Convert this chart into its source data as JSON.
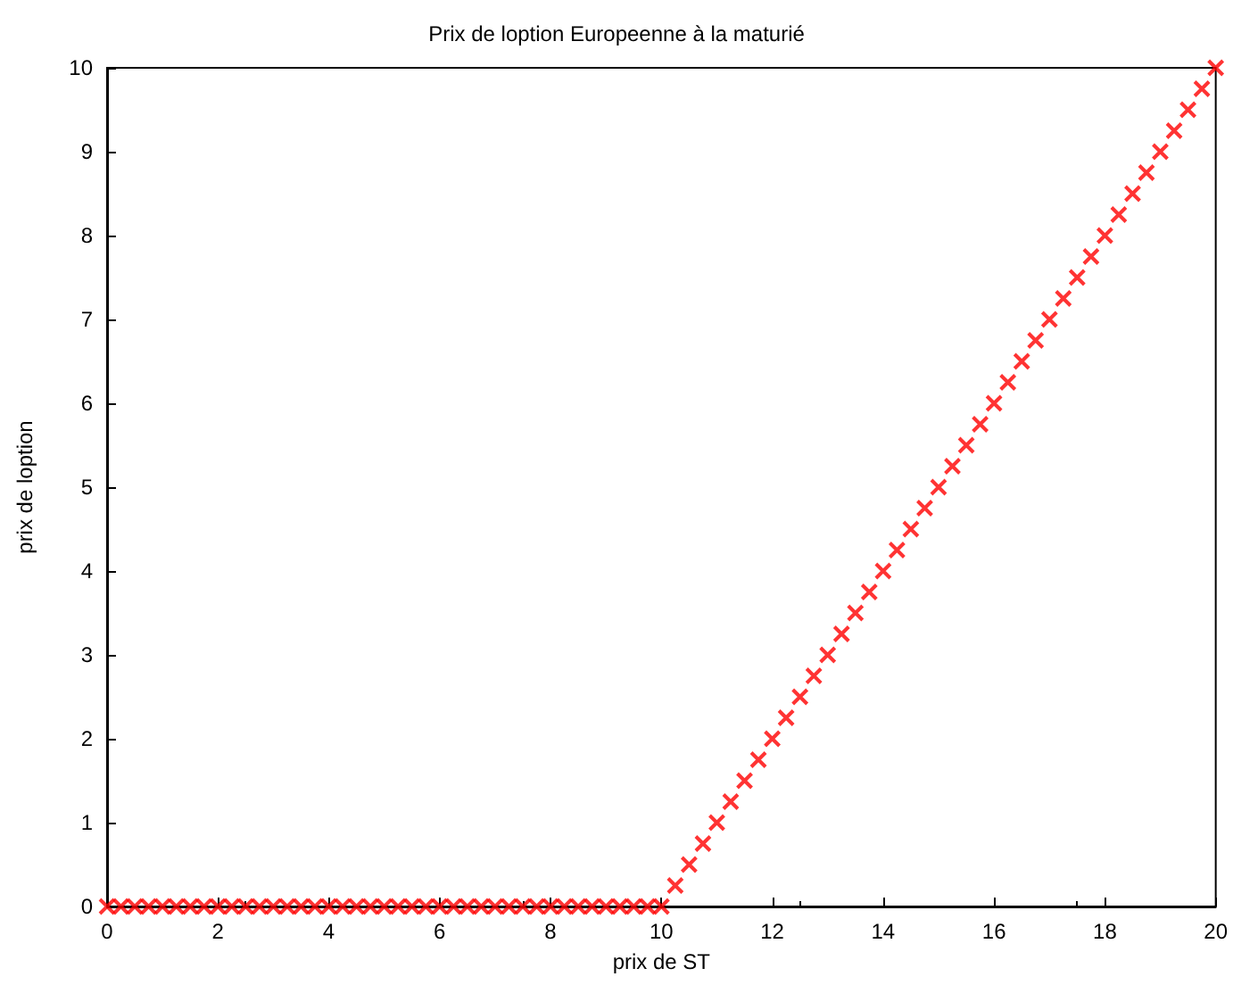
{
  "chart_data": {
    "type": "scatter",
    "title": "Prix de loption Europeenne à la maturié",
    "xlabel": "prix de ST",
    "ylabel": "prix de loption",
    "marker": "cross",
    "xlim": [
      0,
      20
    ],
    "xticks": [
      0,
      2,
      4,
      6,
      8,
      10,
      12,
      14,
      16,
      18,
      20
    ],
    "ylim": [
      0,
      10
    ],
    "yticks": [
      0,
      1,
      2,
      3,
      4,
      5,
      6,
      7,
      8,
      9,
      10
    ],
    "series": [
      {
        "color": "#ff0000",
        "x": [
          0,
          0.25,
          0.5,
          0.75,
          1,
          1.25,
          1.5,
          1.75,
          2,
          2.25,
          2.5,
          2.75,
          3,
          3.25,
          3.5,
          3.75,
          4,
          4.25,
          4.5,
          4.75,
          5,
          5.25,
          5.5,
          5.75,
          6,
          6.25,
          6.5,
          6.75,
          7,
          7.25,
          7.5,
          7.75,
          8,
          8.25,
          8.5,
          8.75,
          9,
          9.25,
          9.5,
          9.75,
          10,
          10.25,
          10.5,
          10.75,
          11,
          11.25,
          11.5,
          11.75,
          12,
          12.25,
          12.5,
          12.75,
          13,
          13.25,
          13.5,
          13.75,
          14,
          14.25,
          14.5,
          14.75,
          15,
          15.25,
          15.5,
          15.75,
          16,
          16.25,
          16.5,
          16.75,
          17,
          17.25,
          17.5,
          17.75,
          18,
          18.25,
          18.5,
          18.75,
          19,
          19.25,
          19.5,
          19.75,
          20
        ],
        "values": [
          0,
          0,
          0,
          0,
          0,
          0,
          0,
          0,
          0,
          0,
          0,
          0,
          0,
          0,
          0,
          0,
          0,
          0,
          0,
          0,
          0,
          0,
          0,
          0,
          0,
          0,
          0,
          0,
          0,
          0,
          0,
          0,
          0,
          0,
          0,
          0,
          0,
          0,
          0,
          0,
          0,
          0.25,
          0.5,
          0.75,
          1,
          1.25,
          1.5,
          1.75,
          2,
          2.25,
          2.5,
          2.75,
          3,
          3.25,
          3.5,
          3.75,
          4,
          4.25,
          4.5,
          4.75,
          5,
          5.25,
          5.5,
          5.75,
          6,
          6.25,
          6.5,
          6.75,
          7,
          7.25,
          7.5,
          7.75,
          8,
          8.25,
          8.5,
          8.75,
          9,
          9.25,
          9.5,
          9.75,
          10
        ]
      }
    ]
  }
}
